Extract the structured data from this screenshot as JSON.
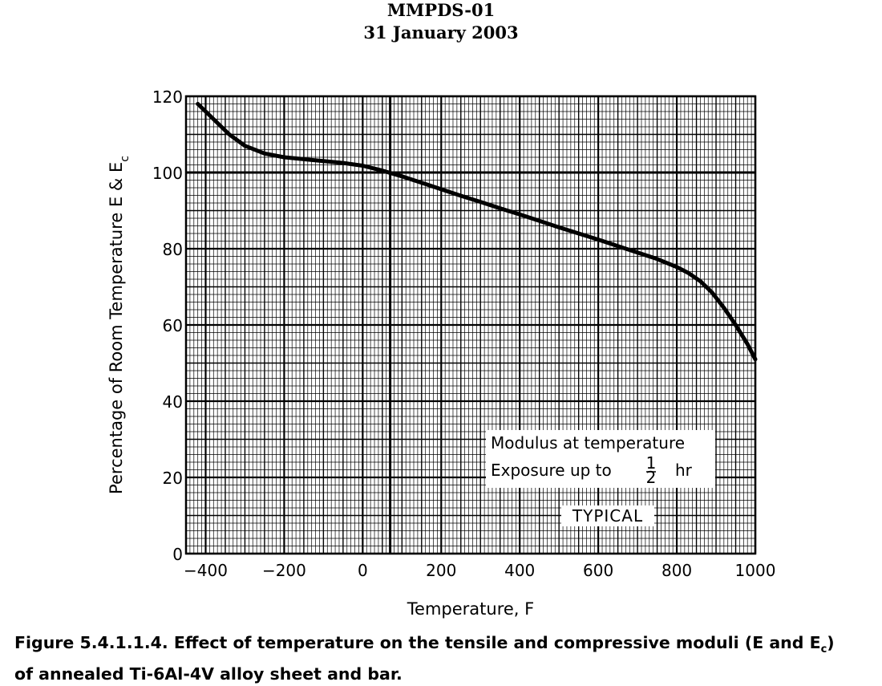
{
  "header": {
    "line1": "MMPDS-01",
    "line2": "31 January 2003"
  },
  "caption": {
    "part1": "Figure 5.4.1.1.4.  Effect of temperature on the tensile and compressive moduli (E and E",
    "sub": "c",
    "part2": ")",
    "line2": "of annealed Ti-6Al-4V alloy sheet and bar."
  },
  "chart_data": {
    "type": "line",
    "xlabel": "Temperature, F",
    "ylabel_main": "Percentage of Room Temperature E & E",
    "ylabel_sub": "c",
    "xlim": [
      -450,
      1000
    ],
    "ylim": [
      0,
      120
    ],
    "x_ticks": [
      -400,
      -200,
      0,
      200,
      400,
      600,
      800,
      1000
    ],
    "x_tick_labels": [
      "−400",
      "−200",
      "0",
      "200",
      "400",
      "600",
      "800",
      "1000"
    ],
    "y_ticks": [
      0,
      20,
      40,
      60,
      80,
      100,
      120
    ],
    "y_tick_labels": [
      "0",
      "20",
      "40",
      "60",
      "80",
      "100",
      "120"
    ],
    "grid": true,
    "annotations": {
      "box_line1": "Modulus at temperature",
      "box_line2_prefix": "Exposure up to",
      "fraction_num": "1",
      "fraction_den": "2",
      "box_line2_suffix": "hr",
      "typical": "TYPICAL"
    },
    "series": [
      {
        "x": [
          -420,
          -380,
          -340,
          -300,
          -250,
          -200,
          -150,
          -100,
          -50,
          0,
          50,
          100,
          150,
          200,
          250,
          300,
          350,
          400,
          450,
          500,
          550,
          600,
          650,
          700,
          750,
          800,
          830,
          860,
          890,
          920,
          950,
          980,
          1000
        ],
        "y": [
          118,
          114,
          110,
          107,
          105,
          104,
          103.5,
          103,
          102.5,
          101.8,
          100.5,
          99,
          97.3,
          95.6,
          93.9,
          92.3,
          90.6,
          89,
          87.3,
          85.6,
          84,
          82.4,
          80.7,
          79,
          77.3,
          75.2,
          73.6,
          71.5,
          68.5,
          64.5,
          60,
          55,
          51
        ]
      }
    ]
  }
}
